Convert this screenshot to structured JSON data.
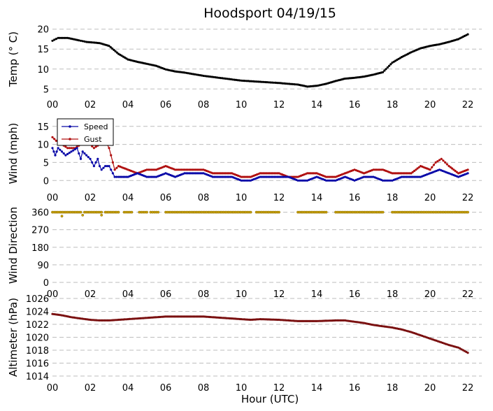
{
  "title": "Hoodsport 04/19/15",
  "xlabel": "Hour (UTC)",
  "x_tick_labels": [
    "00",
    "02",
    "04",
    "06",
    "08",
    "10",
    "12",
    "14",
    "16",
    "18",
    "20",
    "22"
  ],
  "colors": {
    "temp": "#000000",
    "speed": "#0a0aa8",
    "gust": "#b01010",
    "direction_line": "#f5b540",
    "direction_marker": "#c8a000",
    "altimeter_line": "#d52020",
    "altimeter_marker": "#7a1010"
  },
  "chart_data": [
    {
      "type": "line",
      "ylabel": "Temp ($^{\\circ}$C)",
      "ylabel_display": "Temp (° C)",
      "ylim": [
        4,
        21
      ],
      "y_ticks": [
        5,
        10,
        15,
        20
      ],
      "y_tick_labels": [
        "5",
        "10",
        "15",
        "20"
      ],
      "grid": true,
      "series": [
        {
          "x": [
            0.0,
            0.3,
            0.8,
            1.4,
            1.8,
            2.5,
            3.0,
            3.5,
            4.0,
            4.5,
            5.0,
            5.5,
            6.0,
            6.5,
            7.0,
            8.0,
            9.0,
            10.0,
            11.0,
            12.0,
            13.0,
            13.5,
            14.0,
            14.5,
            15.0,
            15.5,
            16.0,
            16.5,
            17.0,
            17.5,
            18.0,
            18.5,
            19.0,
            19.5,
            20.0,
            20.5,
            21.0,
            21.5,
            22.0
          ],
          "values": [
            17.1,
            17.8,
            17.8,
            17.2,
            16.8,
            16.5,
            15.8,
            13.8,
            12.4,
            11.8,
            11.3,
            10.8,
            9.9,
            9.4,
            9.1,
            8.3,
            7.7,
            7.1,
            6.8,
            6.5,
            6.1,
            5.6,
            5.8,
            6.3,
            7.0,
            7.6,
            7.8,
            8.1,
            8.6,
            9.2,
            11.6,
            13.0,
            14.2,
            15.2,
            15.8,
            16.2,
            16.8,
            17.5,
            18.7
          ]
        }
      ]
    },
    {
      "type": "line",
      "ylabel": "Wind (mph)",
      "ylim": [
        -1.5,
        16.5
      ],
      "y_ticks": [
        0,
        5,
        10,
        15
      ],
      "y_tick_labels": [
        "0",
        "5",
        "10",
        "15"
      ],
      "grid": true,
      "legend_position": "top-left",
      "series": [
        {
          "name": "Speed",
          "x": [
            0.0,
            0.15,
            0.3,
            0.5,
            0.7,
            1.0,
            1.3,
            1.5,
            1.6,
            2.0,
            2.2,
            2.4,
            2.5,
            2.6,
            2.8,
            3.0,
            3.3,
            3.5,
            4.0,
            4.5,
            5.0,
            5.5,
            6.0,
            6.5,
            7.0,
            7.5,
            8.0,
            8.5,
            9.0,
            9.5,
            10.0,
            10.5,
            11.0,
            11.5,
            12.0,
            12.5,
            13.0,
            13.5,
            14.0,
            14.5,
            15.0,
            15.5,
            16.0,
            16.5,
            17.0,
            17.5,
            18.0,
            18.5,
            19.0,
            19.5,
            20.0,
            20.5,
            21.0,
            21.5,
            22.0
          ],
          "values": [
            9,
            7,
            9,
            8,
            7,
            8,
            9,
            6,
            8,
            6,
            4,
            6,
            4,
            3,
            4,
            4,
            1,
            1,
            1,
            2,
            1,
            1,
            2,
            1,
            2,
            2,
            2,
            1,
            1,
            1,
            0,
            0,
            1,
            1,
            1,
            1,
            0,
            0,
            1,
            0,
            0,
            1,
            0,
            1,
            1,
            0,
            0,
            1,
            1,
            1,
            2,
            3,
            2,
            1,
            2
          ]
        },
        {
          "name": "Gust",
          "x": [
            0.0,
            0.2,
            0.5,
            0.8,
            1.0,
            1.2,
            1.5,
            1.8,
            2.0,
            2.2,
            2.5,
            2.8,
            3.0,
            3.3,
            3.5,
            4.0,
            4.5,
            5.0,
            5.5,
            6.0,
            6.5,
            7.0,
            7.5,
            8.0,
            8.5,
            9.0,
            9.5,
            10.0,
            10.5,
            11.0,
            11.5,
            12.0,
            12.5,
            13.0,
            13.5,
            14.0,
            14.5,
            15.0,
            15.5,
            16.0,
            16.5,
            17.0,
            17.5,
            18.0,
            18.5,
            19.0,
            19.5,
            20.0,
            20.3,
            20.6,
            21.0,
            21.5,
            22.0
          ],
          "values": [
            12,
            11,
            10,
            9,
            9,
            9,
            10,
            11,
            10,
            9,
            10,
            11,
            9,
            3,
            4,
            3,
            2,
            3,
            3,
            4,
            3,
            3,
            3,
            3,
            2,
            2,
            2,
            1,
            1,
            2,
            2,
            2,
            1,
            1,
            2,
            2,
            1,
            1,
            2,
            3,
            2,
            3,
            3,
            2,
            2,
            2,
            4,
            3,
            5,
            6,
            4,
            2,
            3
          ]
        }
      ]
    },
    {
      "type": "scatter",
      "ylabel": "Wind Direction",
      "ylim": [
        0,
        380
      ],
      "y_ticks": [
        0,
        90,
        180,
        270,
        360
      ],
      "y_tick_labels": [
        "0",
        "90",
        "180",
        "270",
        "360"
      ],
      "grid": true,
      "series": [
        {
          "segments": [
            [
              0.0,
              1.5
            ],
            [
              1.7,
              2.6
            ],
            [
              2.8,
              3.5
            ],
            [
              3.8,
              4.2
            ],
            [
              4.6,
              5.0
            ],
            [
              5.2,
              5.6
            ],
            [
              6.0,
              10.5
            ],
            [
              10.8,
              12.0
            ],
            [
              13.0,
              14.5
            ],
            [
              15.0,
              17.5
            ],
            [
              18.0,
              22.0
            ]
          ],
          "dips": [
            [
              0.5,
              340
            ],
            [
              1.6,
              345
            ],
            [
              2.6,
              345
            ]
          ],
          "values_text": "360"
        }
      ]
    },
    {
      "type": "line",
      "ylabel": "Altimeter (hPa)",
      "ylim": [
        1014,
        1026
      ],
      "y_ticks": [
        1014,
        1016,
        1018,
        1020,
        1022,
        1024,
        1026
      ],
      "y_tick_labels": [
        "1014",
        "1016",
        "1018",
        "1020",
        "1022",
        "1024",
        "1026"
      ],
      "grid": true,
      "series": [
        {
          "x": [
            0.0,
            0.5,
            1.0,
            1.5,
            2.0,
            2.5,
            3.0,
            3.5,
            4.0,
            4.5,
            5.0,
            6.0,
            7.0,
            8.0,
            9.0,
            10.0,
            10.5,
            11.0,
            12.0,
            12.5,
            13.0,
            14.0,
            15.0,
            15.5,
            16.0,
            16.5,
            17.0,
            17.5,
            18.0,
            18.5,
            19.0,
            19.5,
            20.0,
            20.5,
            21.0,
            21.5,
            22.0
          ],
          "values": [
            1023.6,
            1023.4,
            1023.1,
            1022.9,
            1022.7,
            1022.6,
            1022.6,
            1022.7,
            1022.8,
            1022.9,
            1023.0,
            1023.2,
            1023.2,
            1023.2,
            1023.0,
            1022.8,
            1022.7,
            1022.8,
            1022.7,
            1022.6,
            1022.5,
            1022.5,
            1022.6,
            1022.6,
            1022.4,
            1022.2,
            1021.9,
            1021.7,
            1021.5,
            1021.2,
            1020.8,
            1020.3,
            1019.8,
            1019.3,
            1018.8,
            1018.4,
            1017.6
          ]
        }
      ]
    }
  ]
}
